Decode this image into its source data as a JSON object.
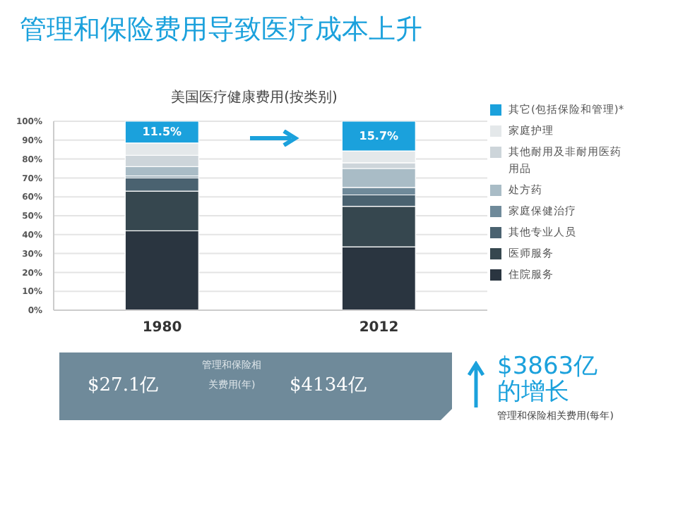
{
  "chart_data": {
    "type": "bar",
    "title": "管理和保险费用导致医疗成本上升",
    "subtitle": "美国医疗健康费用(按类别)",
    "categories": [
      "1980",
      "2012"
    ],
    "stacked": true,
    "series": [
      {
        "name": "住院服务",
        "color": "#2a3540",
        "values": [
          42,
          33.5
        ]
      },
      {
        "name": "医师服务",
        "color": "#36474f",
        "values": [
          21,
          21.5
        ]
      },
      {
        "name": "其他专业人员",
        "color": "#4a6270",
        "values": [
          7,
          6
        ]
      },
      {
        "name": "家庭保健治疗",
        "color": "#6f8a9a",
        "values": [
          1,
          4
        ]
      },
      {
        "name": "处方药",
        "color": "#a9bcc6",
        "values": [
          5,
          10
        ]
      },
      {
        "name": "其他耐用及非耐用医药用品",
        "color": "#cdd5da",
        "values": [
          6,
          3
        ]
      },
      {
        "name": "家庭护理",
        "color": "#e4e8ea",
        "values": [
          6.5,
          6.3
        ]
      },
      {
        "name": "其它(包括保险和管理)*",
        "color": "#1ba1dc",
        "values": [
          11.5,
          15.7
        ],
        "value_labels": [
          "11.5%",
          "15.7%"
        ]
      }
    ],
    "ylim": [
      0,
      100
    ],
    "yticks": [
      {
        "value": 0,
        "label": "0%"
      },
      {
        "value": 10,
        "label": "10%"
      },
      {
        "value": 20,
        "label": "20%"
      },
      {
        "value": 30,
        "label": "30%"
      },
      {
        "value": 40,
        "label": "40%"
      },
      {
        "value": 50,
        "label": "50%"
      },
      {
        "value": 60,
        "label": "60%"
      },
      {
        "value": 70,
        "label": "70%"
      },
      {
        "value": 80,
        "label": "80%"
      },
      {
        "value": 90,
        "label": "90%"
      },
      {
        "value": 100,
        "label": "100%"
      }
    ],
    "grid": "y",
    "legend": "right",
    "annotations": [
      "$27.1亿",
      "管理和保险相关费用(年)",
      "$4134亿",
      "$3863亿的增长",
      "管理和保险相关费用(每年)"
    ]
  }
}
